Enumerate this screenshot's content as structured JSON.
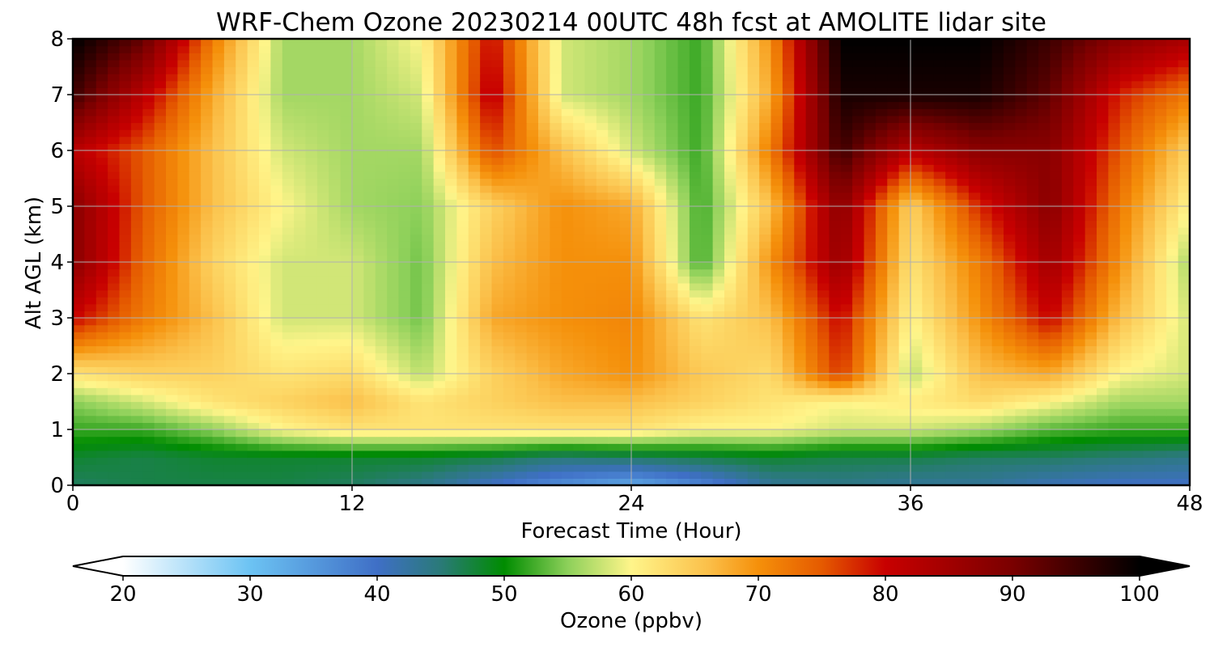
{
  "chart_data": {
    "type": "heatmap",
    "title": "WRF-Chem Ozone  20230214 00UTC 48h fcst at AMOLITE lidar site",
    "xlabel": "Forecast Time (Hour)",
    "ylabel": "Alt AGL (km)",
    "xlim": [
      0,
      48
    ],
    "ylim": [
      0,
      8
    ],
    "x_ticks": [
      "0",
      "12",
      "24",
      "36",
      "48"
    ],
    "y_ticks": [
      "0",
      "1",
      "2",
      "3",
      "4",
      "5",
      "6",
      "7",
      "8"
    ],
    "grid": true,
    "colorbar": {
      "label": "Ozone  (ppbv)",
      "range": [
        20,
        100
      ],
      "extend": "both",
      "ticks": [
        "20",
        "30",
        "40",
        "50",
        "60",
        "70",
        "80",
        "90",
        "100"
      ],
      "stops": [
        {
          "v": 20,
          "c": "#ffffff"
        },
        {
          "v": 30,
          "c": "#6cc3f3"
        },
        {
          "v": 40,
          "c": "#3f6fc6"
        },
        {
          "v": 45,
          "c": "#2a7a78"
        },
        {
          "v": 50,
          "c": "#008c00"
        },
        {
          "v": 55,
          "c": "#8dd05a"
        },
        {
          "v": 60,
          "c": "#fff58a"
        },
        {
          "v": 66,
          "c": "#fbc04a"
        },
        {
          "v": 70,
          "c": "#f5900a"
        },
        {
          "v": 75,
          "c": "#e55a00"
        },
        {
          "v": 80,
          "c": "#c80000"
        },
        {
          "v": 90,
          "c": "#7a0000"
        },
        {
          "v": 100,
          "c": "#000000"
        }
      ]
    },
    "x_hours": [
      0,
      3,
      6,
      9,
      12,
      15,
      18,
      21,
      24,
      27,
      30,
      33,
      36,
      39,
      42,
      45,
      48
    ],
    "altitudes_km": [
      0,
      0.5,
      1,
      1.5,
      2,
      3,
      4,
      5,
      6,
      7,
      8
    ],
    "ozone_ppbv": [
      [
        46,
        47,
        47,
        47,
        46,
        44,
        40,
        36,
        33,
        37,
        43,
        44,
        43,
        43,
        41,
        40,
        40
      ],
      [
        48,
        47,
        48,
        48,
        48,
        48,
        47,
        45,
        46,
        47,
        48,
        47,
        47,
        46,
        46,
        45,
        44
      ],
      [
        52,
        52,
        55,
        60,
        62,
        62,
        62,
        62,
        62,
        60,
        60,
        58,
        58,
        56,
        53,
        52,
        52
      ],
      [
        55,
        58,
        62,
        64,
        66,
        62,
        64,
        66,
        66,
        64,
        62,
        60,
        61,
        63,
        60,
        56,
        56
      ],
      [
        62,
        64,
        64,
        62,
        63,
        57,
        64,
        68,
        70,
        65,
        63,
        77,
        57,
        66,
        68,
        60,
        58
      ],
      [
        80,
        72,
        66,
        58,
        58,
        54,
        68,
        70,
        71,
        62,
        66,
        80,
        60,
        70,
        80,
        66,
        58
      ],
      [
        88,
        74,
        64,
        58,
        58,
        54,
        66,
        70,
        70,
        52,
        70,
        86,
        62,
        72,
        85,
        70,
        56
      ],
      [
        88,
        75,
        66,
        60,
        56,
        55,
        64,
        70,
        68,
        52,
        66,
        88,
        64,
        78,
        88,
        72,
        60
      ],
      [
        82,
        75,
        66,
        58,
        56,
        56,
        76,
        66,
        58,
        52,
        72,
        95,
        82,
        88,
        88,
        75,
        64
      ],
      [
        95,
        82,
        68,
        56,
        56,
        58,
        82,
        58,
        56,
        52,
        68,
        98,
        98,
        98,
        92,
        78,
        72
      ],
      [
        100,
        92,
        72,
        56,
        56,
        60,
        80,
        58,
        56,
        52,
        70,
        100,
        100,
        100,
        95,
        88,
        84
      ]
    ]
  }
}
